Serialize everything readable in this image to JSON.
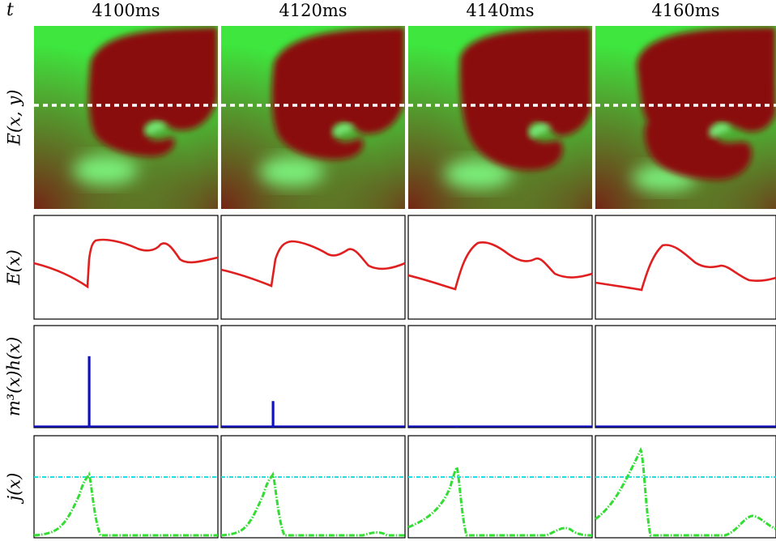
{
  "time_axis_label": "t",
  "row_labels": [
    "E(x, y)",
    "E(x)",
    "m³(x)h(x)",
    "j(x)"
  ],
  "columns": [
    {
      "label": "4100ms",
      "spike": 0.7,
      "j_peak": 0.62
    },
    {
      "label": "4120ms",
      "spike": 0.26,
      "j_peak": 0.62
    },
    {
      "label": "4140ms",
      "spike": 0.015,
      "j_peak": 0.69
    },
    {
      "label": "4160ms",
      "spike": 0.0,
      "j_peak": 0.86
    }
  ],
  "threshold_level": 0.63,
  "colors": {
    "excited": "#8a0c0c",
    "resting": "#3ee63e",
    "voltage_line": "#e02020",
    "gating_line": "#1010c0",
    "current_line": "#33dd33",
    "threshold_line": "#22dddd",
    "scan_line": "#ffffff"
  }
}
